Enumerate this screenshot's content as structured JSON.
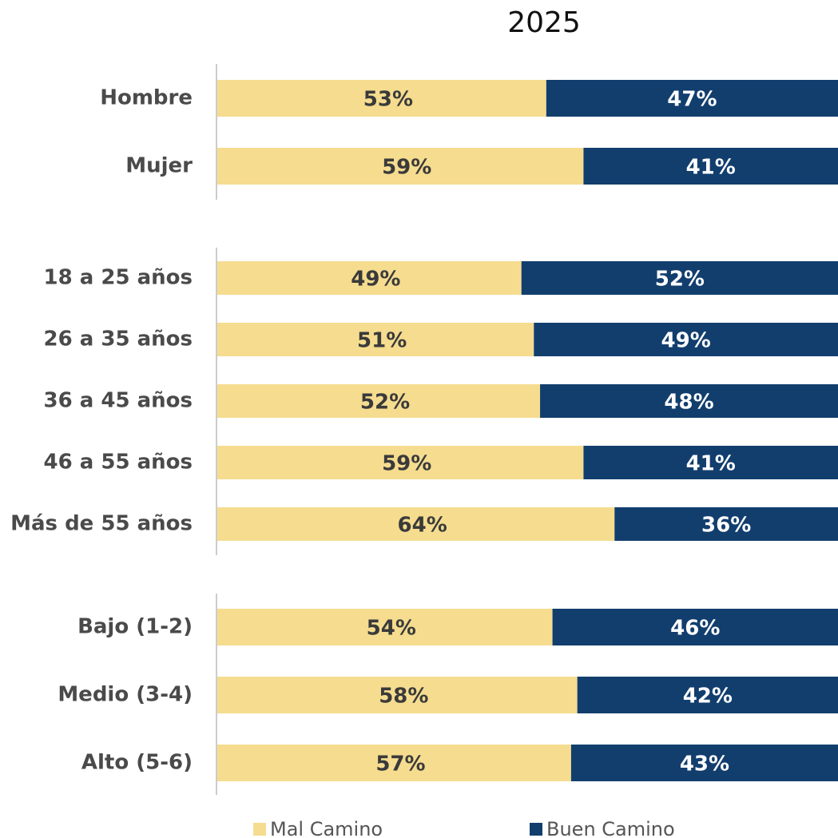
{
  "chart_data": {
    "type": "stacked-bar-horizontal",
    "title": "2025",
    "categories": [
      "Hombre",
      "Mujer",
      "18 a 25 años",
      "26 a 35 años",
      "36 a 45 años",
      "46 a 55 años",
      "Más de 55 años",
      "Bajo (1-2)",
      "Medio (3-4)",
      "Alto (5-6)"
    ],
    "xlim": [
      0,
      100
    ],
    "series": [
      {
        "name": "Mal Camino",
        "color": "#f5dc8f",
        "values": [
          53,
          59,
          49,
          51,
          52,
          59,
          64,
          54,
          58,
          57
        ],
        "value_labels": [
          "53%",
          "59%",
          "49%",
          "51%",
          "52%",
          "59%",
          "64%",
          "54%",
          "58%",
          "57%"
        ]
      },
      {
        "name": "Buen Camino",
        "color": "#123e6e",
        "values": [
          47,
          41,
          52,
          49,
          48,
          41,
          36,
          46,
          42,
          43
        ],
        "value_labels": [
          "47%",
          "41%",
          "52%",
          "49%",
          "48%",
          "41%",
          "36%",
          "46%",
          "42%",
          "43%"
        ]
      }
    ]
  }
}
